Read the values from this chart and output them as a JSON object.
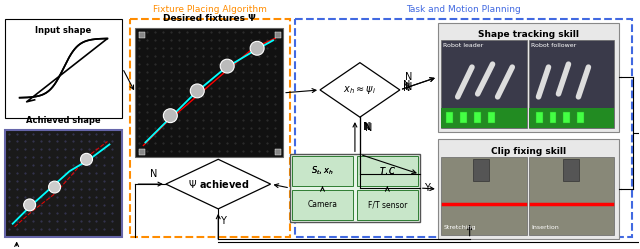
{
  "title_left": "Fixture Placing Algorithm",
  "title_right": "Task and Motion Planning",
  "title_left_color": "#FF8C00",
  "title_right_color": "#4169E1",
  "bg_color": "#ffffff",
  "label_input": "Input shape",
  "label_achieved": "Achieved shape",
  "label_desired": "Desired fixtures Ψ",
  "label_shape_tracking": "Shape tracking skill",
  "label_clip_fixing": "Clip fixing skill",
  "label_robot_leader": "Robot leader",
  "label_robot_follower": "Robot follower",
  "label_stretching": "Stretching",
  "label_insertion": "Insertion",
  "label_camera": "Camera",
  "label_ft": "F/T sensor"
}
